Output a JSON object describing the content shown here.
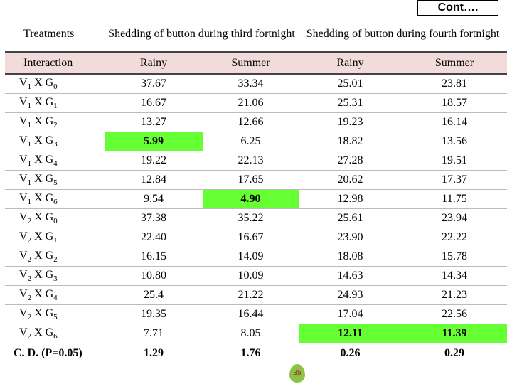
{
  "corner_note": "Cont….",
  "page_number": "35",
  "highlight_color": "#66ff33",
  "header": {
    "treatments": "Treatments",
    "third": "Shedding of button during third fortnight",
    "fourth": "Shedding of button during fourth fortnight",
    "interaction": "Interaction",
    "subheads": [
      "Rainy",
      "Summer",
      "Rainy",
      "Summer"
    ]
  },
  "table": {
    "rows": [
      {
        "label": "V1 X G0",
        "values": [
          "37.67",
          "33.34",
          "25.01",
          "23.81"
        ],
        "highlight": []
      },
      {
        "label": "V1 X G1",
        "values": [
          "16.67",
          "21.06",
          "25.31",
          "18.57"
        ],
        "highlight": []
      },
      {
        "label": "V1 X G2",
        "values": [
          "13.27",
          "12.66",
          "19.23",
          "16.14"
        ],
        "highlight": []
      },
      {
        "label": "V1 X G3",
        "values": [
          "5.99",
          "6.25",
          "18.82",
          "13.56"
        ],
        "highlight": [
          0
        ]
      },
      {
        "label": "V1 X G4",
        "values": [
          "19.22",
          "22.13",
          "27.28",
          "19.51"
        ],
        "highlight": []
      },
      {
        "label": "V1 X G5",
        "values": [
          "12.84",
          "17.65",
          "20.62",
          "17.37"
        ],
        "highlight": []
      },
      {
        "label": "V1 X G6",
        "values": [
          "9.54",
          "4.90",
          "12.98",
          "11.75"
        ],
        "highlight": [
          1
        ]
      },
      {
        "label": "V2 X G0",
        "values": [
          "37.38",
          "35.22",
          "25.61",
          "23.94"
        ],
        "highlight": []
      },
      {
        "label": "V2 X G1",
        "values": [
          "22.40",
          "16.67",
          "23.90",
          "22.22"
        ],
        "highlight": []
      },
      {
        "label": "V2 X G2",
        "values": [
          "16.15",
          "14.09",
          "18.08",
          "15.78"
        ],
        "highlight": []
      },
      {
        "label": "V2 X G3",
        "values": [
          "10.80",
          "10.09",
          "14.63",
          "14.34"
        ],
        "highlight": []
      },
      {
        "label": "V2 X G4",
        "values": [
          "25.4",
          "21.22",
          "24.93",
          "21.23"
        ],
        "highlight": []
      },
      {
        "label": "V2 X G5",
        "values": [
          "19.35",
          "16.44",
          "17.04",
          "22.56"
        ],
        "highlight": []
      },
      {
        "label": "V2 X G6",
        "values": [
          "7.71",
          "8.05",
          "12.11",
          "11.39"
        ],
        "highlight": [
          2,
          3
        ]
      }
    ],
    "cd": {
      "label": "C. D. (P=0.05)",
      "values": [
        "1.29",
        "1.76",
        "0.26",
        "0.29"
      ]
    }
  }
}
